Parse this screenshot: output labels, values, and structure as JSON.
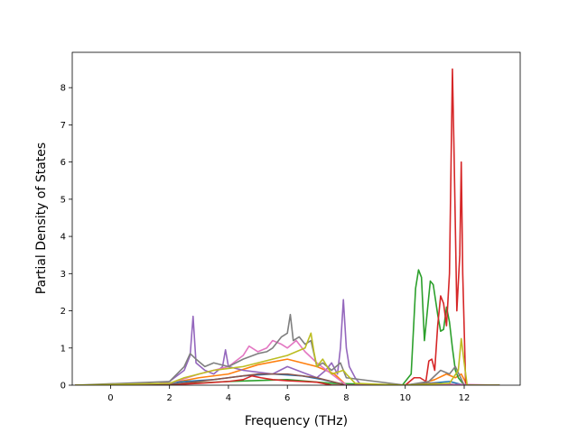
{
  "chart_data": {
    "type": "line",
    "title": "",
    "xlabel": "Frequency (THz)",
    "ylabel": "Partial Density of States",
    "xlim": [
      -1.3,
      13.9
    ],
    "ylim": [
      0,
      8.95
    ],
    "xticks": [
      0,
      2,
      4,
      6,
      8,
      10,
      12
    ],
    "yticks": [
      0,
      1,
      2,
      3,
      4,
      5,
      6,
      7,
      8
    ],
    "grid": false,
    "legend": "none",
    "series": [
      {
        "color": "#ff7f0e",
        "x": [
          -1.2,
          1.0,
          2.0,
          3.0,
          4.0,
          5.0,
          6.0,
          7.0,
          7.6,
          8.0,
          9.8,
          10.2,
          10.6,
          11.0,
          11.4,
          11.7,
          11.9,
          12.1,
          13.2
        ],
        "y": [
          0,
          0.01,
          0.05,
          0.2,
          0.3,
          0.55,
          0.7,
          0.5,
          0.3,
          0,
          0,
          0.02,
          0.05,
          0.15,
          0.3,
          0.2,
          0.3,
          0,
          0
        ]
      },
      {
        "color": "#1f77b4",
        "x": [
          -1.2,
          1.5,
          2.5,
          3.5,
          4.5,
          5.5,
          6.5,
          7.2,
          8.0,
          10.0,
          10.8,
          11.5,
          12.0,
          13.2
        ],
        "y": [
          0,
          0.01,
          0.1,
          0.15,
          0.25,
          0.3,
          0.25,
          0.15,
          0,
          0,
          0.05,
          0.1,
          0,
          0
        ]
      },
      {
        "color": "#2ca02c",
        "x": [
          -1.2,
          2.0,
          4.0,
          6.0,
          7.5,
          9.9,
          10.2,
          10.35,
          10.45,
          10.55,
          10.65,
          10.75,
          10.85,
          10.95,
          11.1,
          11.2,
          11.3,
          11.4,
          11.5,
          11.6,
          11.7,
          11.8,
          11.9,
          12.0,
          13.2
        ],
        "y": [
          0,
          0.02,
          0.1,
          0.15,
          0.05,
          0,
          0.3,
          2.6,
          3.1,
          2.9,
          1.2,
          2.0,
          2.8,
          2.7,
          1.9,
          1.45,
          1.5,
          2.1,
          1.7,
          1.0,
          0.4,
          0.2,
          0.1,
          0,
          0
        ]
      },
      {
        "color": "#d62728",
        "x": [
          -1.2,
          2.0,
          3.0,
          4.0,
          4.5,
          4.8,
          5.1,
          5.5,
          6.0,
          6.5,
          7.0,
          7.5,
          10.0,
          10.3,
          10.5,
          10.7,
          10.8,
          10.9,
          11.0,
          11.1,
          11.2,
          11.3,
          11.4,
          11.5,
          11.6,
          11.65,
          11.75,
          11.85,
          11.9,
          11.95,
          12.05,
          13.2
        ],
        "y": [
          0,
          0.01,
          0.05,
          0.1,
          0.15,
          0.25,
          0.2,
          0.15,
          0.12,
          0.1,
          0.08,
          0,
          0,
          0.2,
          0.2,
          0.1,
          0.65,
          0.7,
          0.4,
          1.6,
          2.4,
          2.2,
          1.6,
          3.0,
          8.5,
          6.5,
          2.0,
          3.5,
          6.0,
          3.0,
          0,
          0
        ]
      },
      {
        "color": "#9467bd",
        "x": [
          -1.2,
          1.5,
          2.0,
          2.5,
          2.7,
          2.8,
          2.9,
          3.2,
          3.5,
          3.8,
          3.9,
          4.0,
          4.5,
          5.0,
          5.5,
          6.0,
          6.5,
          7.0,
          7.3,
          7.5,
          7.7,
          7.8,
          7.9,
          8.0,
          8.1,
          8.3,
          8.5,
          10.0,
          11.0,
          12.0,
          13.2
        ],
        "y": [
          0,
          0.02,
          0.1,
          0.4,
          0.8,
          1.85,
          0.6,
          0.4,
          0.3,
          0.5,
          0.95,
          0.5,
          0.4,
          0.35,
          0.3,
          0.5,
          0.35,
          0.2,
          0.4,
          0.6,
          0.3,
          1.0,
          2.3,
          1.0,
          0.5,
          0.2,
          0,
          0,
          0.05,
          0,
          0
        ]
      },
      {
        "color": "#8c564b",
        "x": [
          -1.2,
          2.0,
          3.0,
          4.0,
          5.0,
          6.0,
          7.0,
          8.0,
          10.0,
          11.0,
          12.0,
          13.2
        ],
        "y": [
          0,
          0.02,
          0.1,
          0.2,
          0.3,
          0.3,
          0.2,
          0,
          0,
          0.05,
          0,
          0
        ]
      },
      {
        "color": "#e377c2",
        "x": [
          -1.2,
          2.0,
          3.0,
          4.0,
          4.5,
          4.7,
          5.0,
          5.3,
          5.5,
          5.8,
          6.0,
          6.3,
          6.6,
          7.0,
          7.5,
          8.0,
          10.0,
          12.0,
          13.2
        ],
        "y": [
          0,
          0.05,
          0.3,
          0.5,
          0.8,
          1.05,
          0.9,
          1.0,
          1.2,
          1.1,
          1.0,
          1.2,
          0.9,
          0.6,
          0.3,
          0,
          0,
          0.02,
          0
        ]
      },
      {
        "color": "#7f7f7f",
        "x": [
          -1.2,
          2.0,
          2.5,
          2.7,
          2.9,
          3.2,
          3.5,
          4.0,
          4.5,
          5.0,
          5.3,
          5.5,
          5.8,
          6.0,
          6.1,
          6.2,
          6.4,
          6.6,
          6.8,
          7.0,
          7.2,
          7.5,
          7.8,
          8.0,
          10.0,
          10.8,
          11.2,
          11.5,
          11.7,
          12.0,
          13.2
        ],
        "y": [
          0,
          0.1,
          0.5,
          0.85,
          0.7,
          0.5,
          0.6,
          0.5,
          0.7,
          0.85,
          0.9,
          1.0,
          1.3,
          1.4,
          1.9,
          1.2,
          1.3,
          1.1,
          1.2,
          0.5,
          0.6,
          0.4,
          0.6,
          0.2,
          0,
          0.1,
          0.4,
          0.3,
          0.5,
          0,
          0
        ]
      },
      {
        "color": "#bcbd22",
        "x": [
          -1.2,
          2.0,
          2.5,
          3.0,
          3.5,
          4.0,
          4.5,
          5.0,
          5.5,
          6.0,
          6.3,
          6.6,
          6.8,
          6.9,
          7.0,
          7.2,
          7.5,
          7.9,
          8.0,
          8.3,
          10.0,
          11.5,
          11.8,
          11.9,
          12.0,
          12.1,
          13.2
        ],
        "y": [
          0,
          0.05,
          0.2,
          0.3,
          0.4,
          0.45,
          0.5,
          0.6,
          0.7,
          0.8,
          0.9,
          1.0,
          1.4,
          0.9,
          0.5,
          0.7,
          0.3,
          0.4,
          0.3,
          0.05,
          0,
          0.05,
          0.4,
          1.25,
          0.6,
          0,
          0
        ]
      }
    ]
  }
}
